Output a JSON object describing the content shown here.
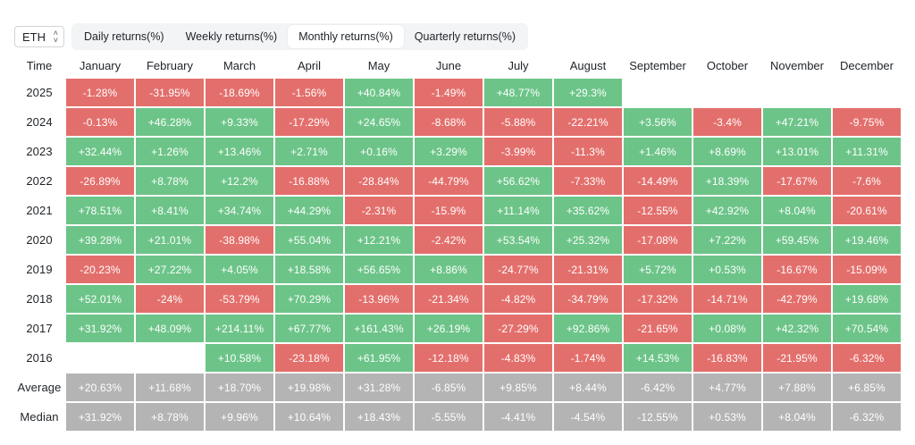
{
  "controls": {
    "asset_label": "ETH",
    "tabs": [
      {
        "label": "Daily returns(%)",
        "active": false
      },
      {
        "label": "Weekly returns(%)",
        "active": false
      },
      {
        "label": "Monthly returns(%)",
        "active": true
      },
      {
        "label": "Quarterly returns(%)",
        "active": false
      }
    ]
  },
  "colors": {
    "positive": "#6cc488",
    "negative": "#e36f6c",
    "statistic": "#b4b4b4"
  },
  "table": {
    "corner_label": "Time",
    "columns": [
      "January",
      "February",
      "March",
      "April",
      "May",
      "June",
      "July",
      "August",
      "September",
      "October",
      "November",
      "December"
    ],
    "rows": [
      {
        "label": "2025",
        "kind": "year",
        "values": [
          "-1.28%",
          "-31.95%",
          "-18.69%",
          "-1.56%",
          "+40.84%",
          "-1.49%",
          "+48.77%",
          "+29.3%",
          "",
          "",
          "",
          ""
        ]
      },
      {
        "label": "2024",
        "kind": "year",
        "values": [
          "-0.13%",
          "+46.28%",
          "+9.33%",
          "-17.29%",
          "+24.65%",
          "-8.68%",
          "-5.88%",
          "-22.21%",
          "+3.56%",
          "-3.4%",
          "+47.21%",
          "-9.75%"
        ]
      },
      {
        "label": "2023",
        "kind": "year",
        "values": [
          "+32.44%",
          "+1.26%",
          "+13.46%",
          "+2.71%",
          "+0.16%",
          "+3.29%",
          "-3.99%",
          "-11.3%",
          "+1.46%",
          "+8.69%",
          "+13.01%",
          "+11.31%"
        ]
      },
      {
        "label": "2022",
        "kind": "year",
        "values": [
          "-26.89%",
          "+8.78%",
          "+12.2%",
          "-16.88%",
          "-28.84%",
          "-44.79%",
          "+56.62%",
          "-7.33%",
          "-14.49%",
          "+18.39%",
          "-17.67%",
          "-7.6%"
        ]
      },
      {
        "label": "2021",
        "kind": "year",
        "values": [
          "+78.51%",
          "+8.41%",
          "+34.74%",
          "+44.29%",
          "-2.31%",
          "-15.9%",
          "+11.14%",
          "+35.62%",
          "-12.55%",
          "+42.92%",
          "+8.04%",
          "-20.61%"
        ]
      },
      {
        "label": "2020",
        "kind": "year",
        "values": [
          "+39.28%",
          "+21.01%",
          "-38.98%",
          "+55.04%",
          "+12.21%",
          "-2.42%",
          "+53.54%",
          "+25.32%",
          "-17.08%",
          "+7.22%",
          "+59.45%",
          "+19.46%"
        ]
      },
      {
        "label": "2019",
        "kind": "year",
        "values": [
          "-20.23%",
          "+27.22%",
          "+4.05%",
          "+18.58%",
          "+56.65%",
          "+8.86%",
          "-24.77%",
          "-21.31%",
          "+5.72%",
          "+0.53%",
          "-16.67%",
          "-15.09%"
        ]
      },
      {
        "label": "2018",
        "kind": "year",
        "values": [
          "+52.01%",
          "-24%",
          "-53.79%",
          "+70.29%",
          "-13.96%",
          "-21.34%",
          "-4.82%",
          "-34.79%",
          "-17.32%",
          "-14.71%",
          "-42.79%",
          "+19.68%"
        ]
      },
      {
        "label": "2017",
        "kind": "year",
        "values": [
          "+31.92%",
          "+48.09%",
          "+214.11%",
          "+67.77%",
          "+161.43%",
          "+26.19%",
          "-27.29%",
          "+92.86%",
          "-21.65%",
          "+0.08%",
          "+42.32%",
          "+70.54%"
        ]
      },
      {
        "label": "2016",
        "kind": "year",
        "values": [
          "",
          "",
          "+10.58%",
          "-23.18%",
          "+61.95%",
          "-12.18%",
          "-4.83%",
          "-1.74%",
          "+14.53%",
          "-16.83%",
          "-21.95%",
          "-6.32%"
        ]
      },
      {
        "label": "Average",
        "kind": "stat",
        "values": [
          "+20.63%",
          "+11.68%",
          "+18.70%",
          "+19.98%",
          "+31.28%",
          "-6.85%",
          "+9.85%",
          "+8.44%",
          "-6.42%",
          "+4.77%",
          "+7.88%",
          "+6.85%"
        ]
      },
      {
        "label": "Median",
        "kind": "stat",
        "values": [
          "+31.92%",
          "+8.78%",
          "+9.96%",
          "+10.64%",
          "+18.43%",
          "-5.55%",
          "-4.41%",
          "-4.54%",
          "-12.55%",
          "+0.53%",
          "+8.04%",
          "-6.32%"
        ]
      }
    ]
  }
}
